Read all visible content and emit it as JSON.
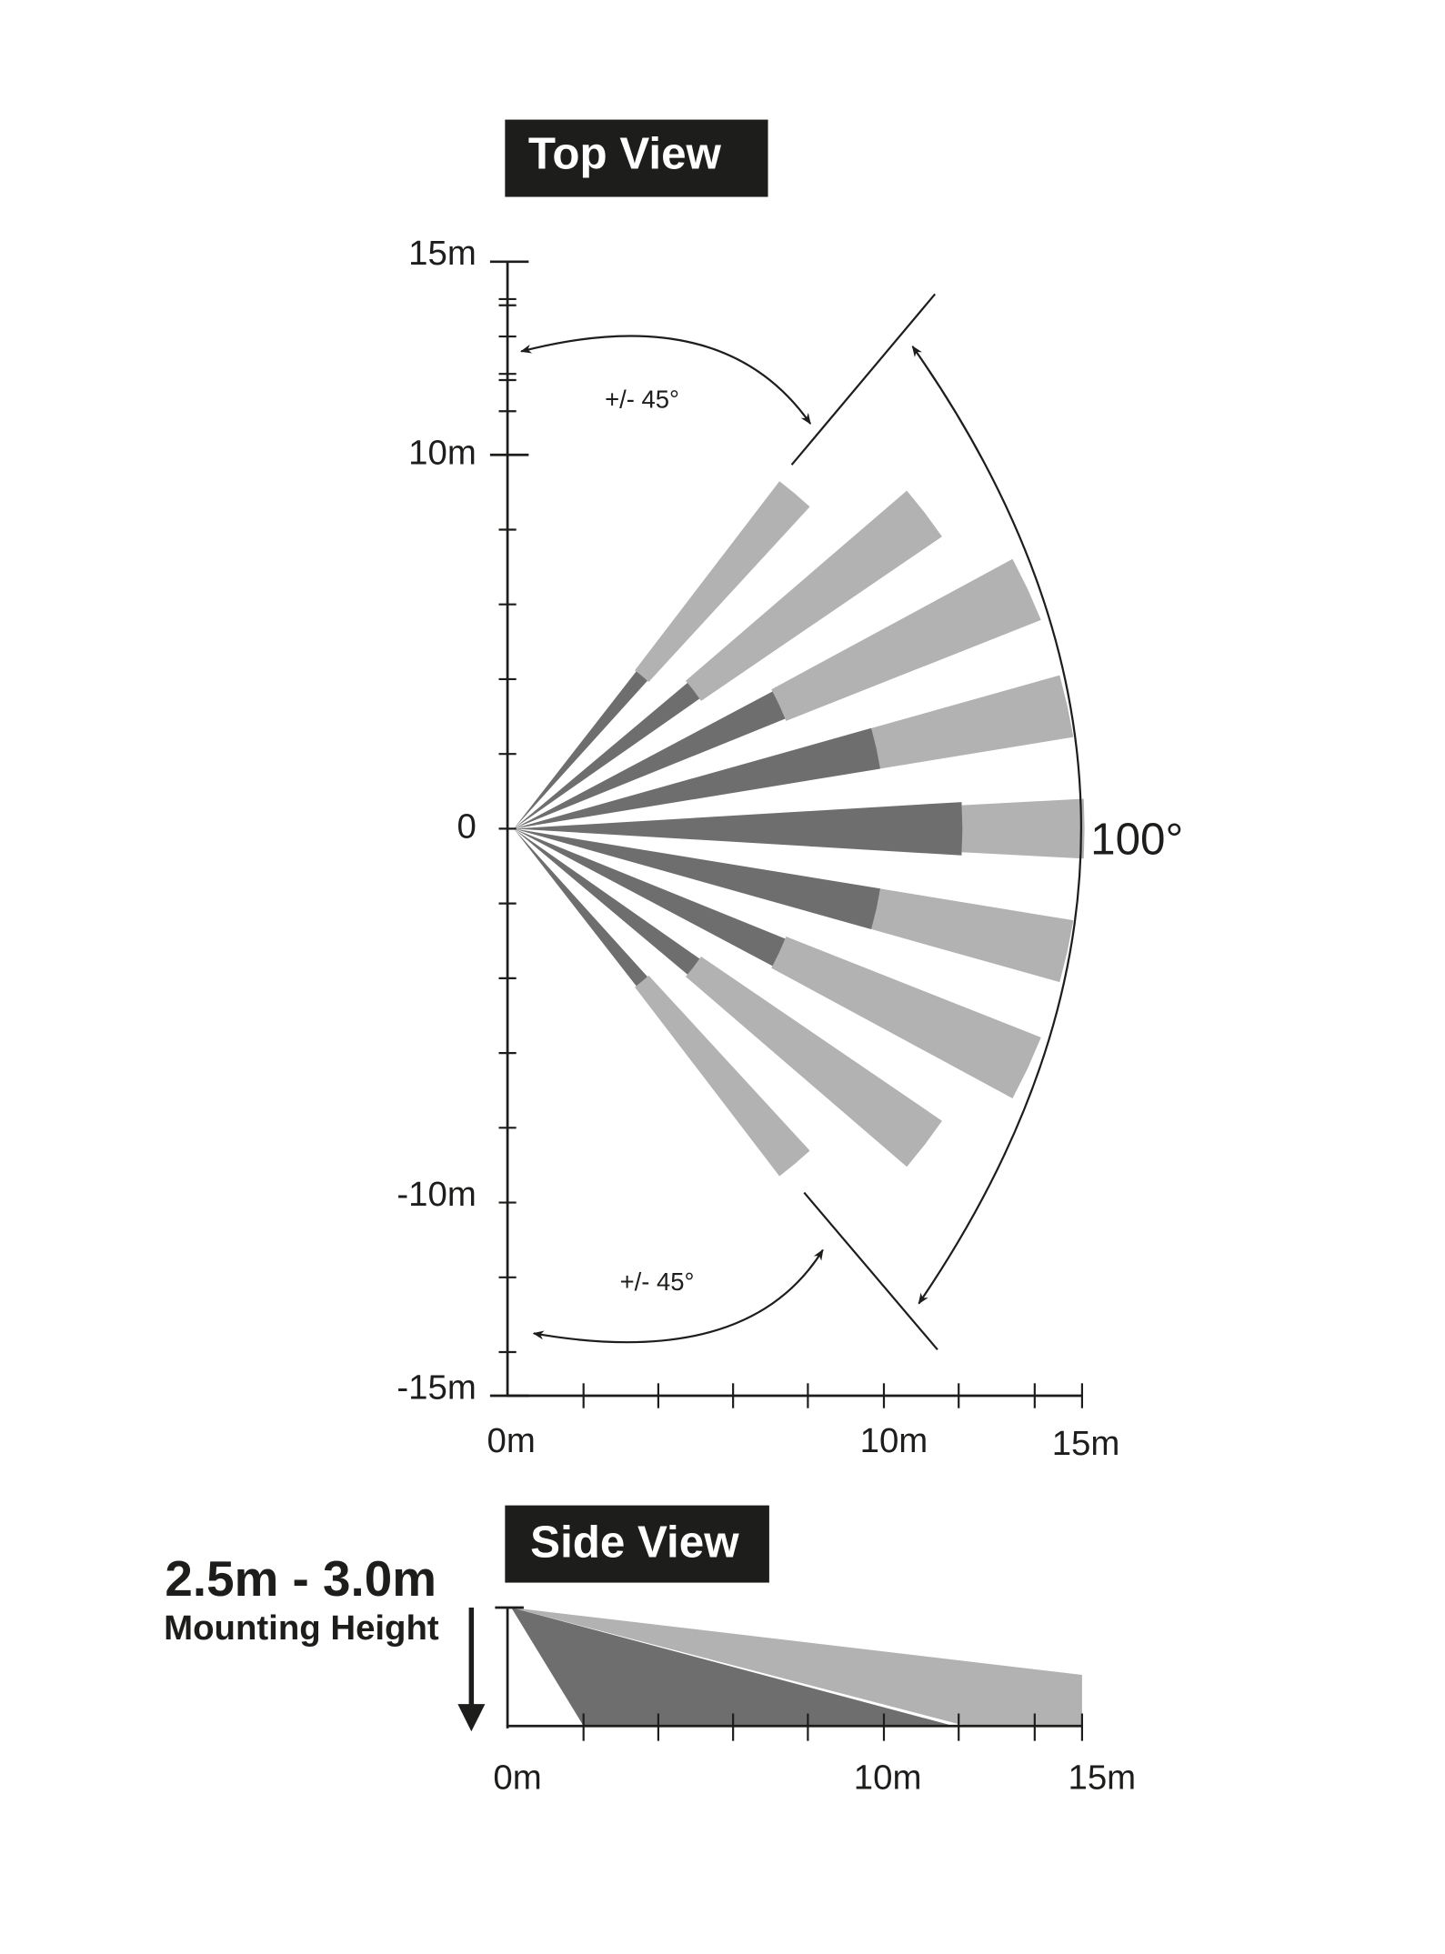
{
  "top_view": {
    "title": "Top View",
    "y_labels": [
      "15m",
      "10m",
      "0",
      "-10m",
      "-15m"
    ],
    "x_labels": [
      "0m",
      "10m",
      "15m"
    ],
    "angle_labels": [
      "+/- 45°",
      "+/- 45°"
    ],
    "coverage_label": "100°"
  },
  "side_view": {
    "title": "Side View",
    "height_label": "2.5m - 3.0m",
    "height_caption": "Mounting Height",
    "x_labels": [
      "0m",
      "10m",
      "15m"
    ]
  }
}
